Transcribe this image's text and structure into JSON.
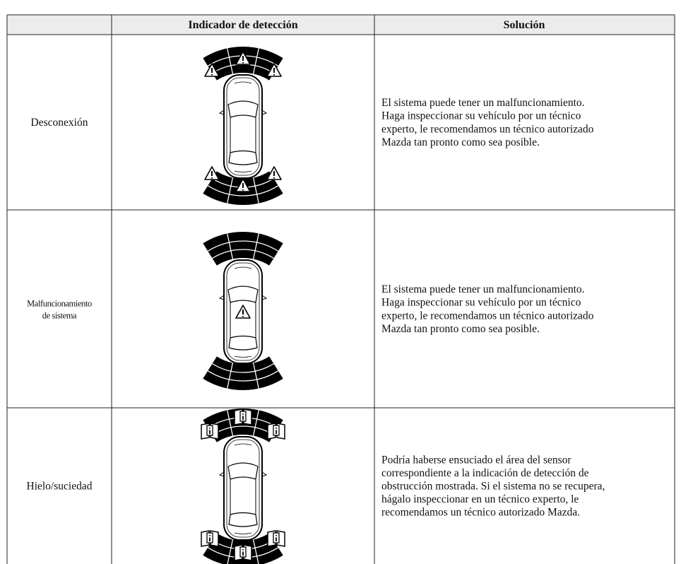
{
  "table": {
    "header": {
      "indicator": "Indicador de detección",
      "solution": "Solución"
    },
    "rows": [
      {
        "label": [
          "Desconexión"
        ],
        "solution": [
          "El sistema puede tener un malfuncionamiento.",
          "Haga inspeccionar su vehículo por un técnico",
          "experto, le recomendamos un técnico autorizado",
          "Mazda tan pronto como sea posible."
        ]
      },
      {
        "label": [
          "Malfuncionamiento",
          "de sistema"
        ],
        "solution": [
          "El sistema puede tener un malfuncionamiento.",
          "Haga inspeccionar su vehículo por un técnico",
          "experto, le recomendamos un técnico autorizado",
          "Mazda tan pronto como sea posible."
        ]
      },
      {
        "label": [
          "Hielo/suciedad"
        ],
        "solution": [
          "Podría haberse ensuciado el área del sensor",
          "correspondiente a la indicación de detección de",
          "obstrucción mostrada. Si el sistema no se recupera,",
          "hágalo inspeccionar en un técnico experto, le",
          "recomendamos un técnico autorizado Mazda."
        ]
      }
    ]
  }
}
